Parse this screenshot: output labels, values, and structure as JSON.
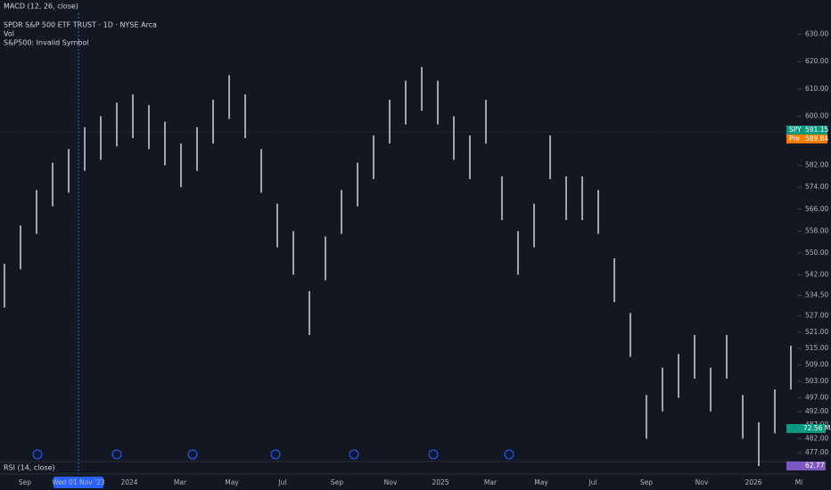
{
  "legend": {
    "macd": "MACD (12, 26, close)",
    "symbol": "SPDR S&P 500 ETF TRUST · 1D · NYSE Arca",
    "vol": "Vol",
    "invalid": "S&P500: Invalid Symbol",
    "rsi": "RSI (14, close)"
  },
  "price": {
    "ylim": [
      474,
      636
    ],
    "ticks": [
      {
        "value": 630,
        "label": "630.00"
      },
      {
        "value": 620,
        "label": "620.00"
      },
      {
        "value": 610,
        "label": "610.00"
      },
      {
        "value": 600,
        "label": "600.00"
      },
      {
        "value": 582,
        "label": "582.00"
      },
      {
        "value": 574,
        "label": "574.00"
      },
      {
        "value": 566,
        "label": "566.00"
      },
      {
        "value": 558,
        "label": "558.00"
      },
      {
        "value": 550,
        "label": "550.00"
      },
      {
        "value": 542,
        "label": "542.00"
      },
      {
        "value": 534.5,
        "label": "534.50"
      },
      {
        "value": 527,
        "label": "527.00"
      },
      {
        "value": 521,
        "label": "521.00"
      },
      {
        "value": 515,
        "label": "515.00"
      },
      {
        "value": 509,
        "label": "509.00"
      },
      {
        "value": 503,
        "label": "503.00"
      },
      {
        "value": 497,
        "label": "497.00"
      },
      {
        "value": 492,
        "label": "492.00"
      },
      {
        "value": 487,
        "label": "487.00"
      },
      {
        "value": 482,
        "label": "482.00"
      },
      {
        "value": 477,
        "label": "477.00"
      }
    ],
    "highs": [
      546,
      560,
      573,
      583,
      588,
      596,
      600,
      605,
      608,
      604,
      598,
      590,
      596,
      606,
      615,
      608,
      588,
      568,
      558,
      536,
      556,
      573,
      583,
      593,
      606,
      613,
      618,
      613,
      600,
      593,
      606,
      578,
      558,
      568,
      593,
      578,
      578,
      573,
      548,
      528,
      498,
      508,
      513,
      520,
      508,
      520,
      498,
      488,
      500,
      516
    ],
    "lows": [
      530,
      544,
      557,
      567,
      572,
      580,
      584,
      589,
      592,
      588,
      582,
      574,
      580,
      590,
      599,
      592,
      572,
      552,
      542,
      520,
      540,
      557,
      567,
      577,
      590,
      597,
      602,
      597,
      584,
      577,
      590,
      562,
      542,
      552,
      577,
      562,
      562,
      557,
      532,
      512,
      482,
      492,
      497,
      504,
      492,
      504,
      482,
      472,
      484,
      500
    ]
  },
  "badges": {
    "spy": {
      "name": "SPY",
      "value": "591.15"
    },
    "pre": {
      "name": "Pre",
      "value": "589.84"
    },
    "volume": "72.56 M",
    "rsi": "62.77"
  },
  "time_axis": [
    "Sep",
    "Wed 01 Nov '23",
    "2024",
    "Mar",
    "May",
    "Jul",
    "Sep",
    "Nov",
    "2025",
    "Mar",
    "May",
    "Jul",
    "Sep",
    "Nov",
    "2026",
    "Mi"
  ]
}
